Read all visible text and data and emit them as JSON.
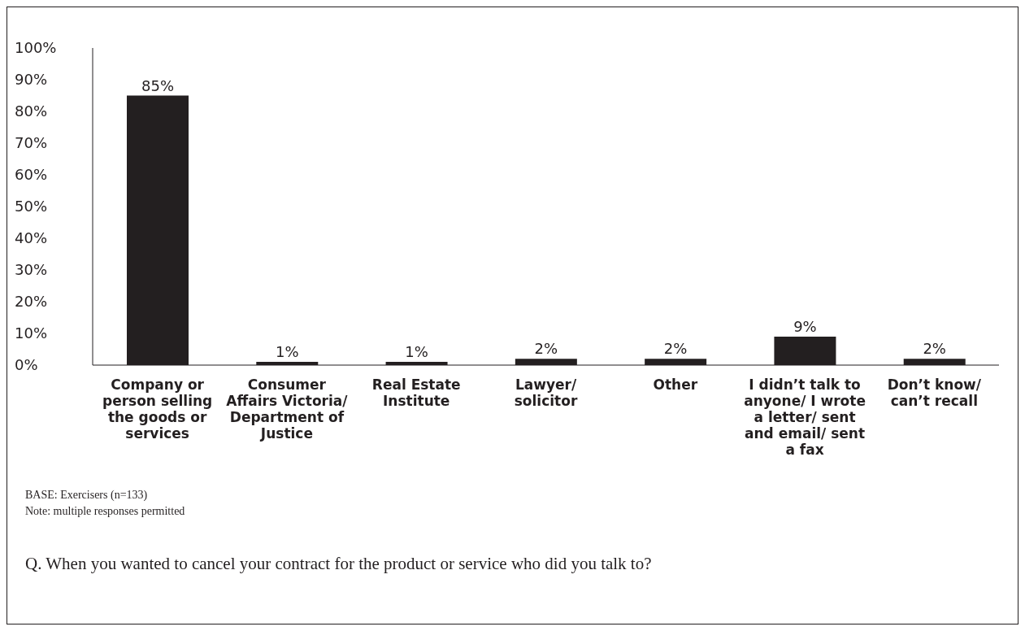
{
  "chart_data": {
    "type": "bar",
    "categories": [
      "Company or person selling the goods or services",
      "Consumer Affairs Victoria/ Department of Justice",
      "Real Estate Institute",
      "Lawyer/ solicitor",
      "Other",
      "I didn’t talk to anyone/ I wrote a letter/ sent and email/ sent a fax",
      "Don’t know/ can’t recall"
    ],
    "values": [
      85,
      1,
      1,
      2,
      2,
      9,
      2
    ],
    "value_labels": [
      "85%",
      "1%",
      "1%",
      "2%",
      "2%",
      "9%",
      "2%"
    ],
    "color": "#231f20",
    "ylim": [
      0,
      100
    ],
    "yticks": [
      {
        "value": 0,
        "label": "0%"
      },
      {
        "value": 10,
        "label": "10%"
      },
      {
        "value": 20,
        "label": "20%"
      },
      {
        "value": 30,
        "label": "30%"
      },
      {
        "value": 40,
        "label": "40%"
      },
      {
        "value": 50,
        "label": "50%"
      },
      {
        "value": 60,
        "label": "60%"
      },
      {
        "value": 70,
        "label": "70%"
      },
      {
        "value": 80,
        "label": "80%"
      },
      {
        "value": 90,
        "label": "90%"
      },
      {
        "value": 100,
        "label": "100%"
      }
    ],
    "grid": false,
    "legend": false,
    "annotations": [
      "BASE: Exercisers (n=133)",
      "Note: multiple responses permitted",
      "Q. When you wanted to cancel your contract for the product or service who did you talk to?"
    ]
  }
}
